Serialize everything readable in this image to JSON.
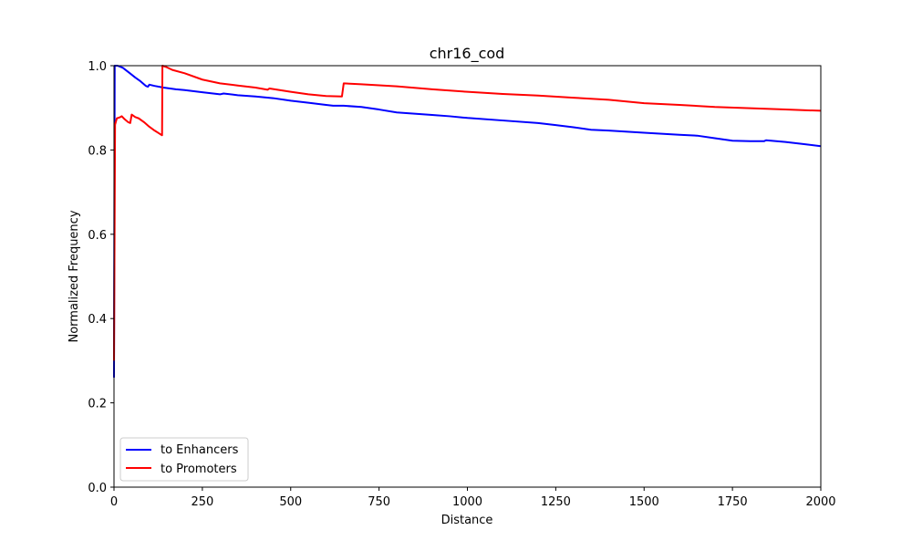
{
  "chart_data": {
    "type": "line",
    "title": "chr16_cod",
    "xlabel": "Distance",
    "ylabel": "Normalized Frequency",
    "xlim": [
      0,
      2000
    ],
    "ylim": [
      0.0,
      1.0
    ],
    "xticks": [
      0,
      250,
      500,
      750,
      1000,
      1250,
      1500,
      1750,
      2000
    ],
    "yticks": [
      0.0,
      0.2,
      0.4,
      0.6,
      0.8,
      1.0
    ],
    "xtick_labels": [
      "0",
      "250",
      "500",
      "750",
      "1000",
      "1250",
      "1500",
      "1750",
      "2000"
    ],
    "ytick_labels": [
      "0.0",
      "0.2",
      "0.4",
      "0.6",
      "0.8",
      "1.0"
    ],
    "grid": false,
    "legend_position": "lower-left",
    "series": [
      {
        "name": "to Enhancers",
        "color": "#0000ff",
        "points": [
          [
            0,
            0.26
          ],
          [
            2,
            1.0
          ],
          [
            10,
            1.0
          ],
          [
            25,
            0.995
          ],
          [
            45,
            0.982
          ],
          [
            60,
            0.972
          ],
          [
            75,
            0.963
          ],
          [
            90,
            0.952
          ],
          [
            96,
            0.95
          ],
          [
            100,
            0.955
          ],
          [
            115,
            0.952
          ],
          [
            140,
            0.948
          ],
          [
            175,
            0.944
          ],
          [
            200,
            0.942
          ],
          [
            250,
            0.937
          ],
          [
            300,
            0.932
          ],
          [
            310,
            0.934
          ],
          [
            350,
            0.93
          ],
          [
            400,
            0.927
          ],
          [
            450,
            0.923
          ],
          [
            500,
            0.917
          ],
          [
            550,
            0.912
          ],
          [
            600,
            0.907
          ],
          [
            620,
            0.905
          ],
          [
            650,
            0.905
          ],
          [
            700,
            0.902
          ],
          [
            750,
            0.896
          ],
          [
            800,
            0.889
          ],
          [
            850,
            0.886
          ],
          [
            900,
            0.883
          ],
          [
            950,
            0.88
          ],
          [
            1000,
            0.876
          ],
          [
            1100,
            0.87
          ],
          [
            1200,
            0.864
          ],
          [
            1250,
            0.859
          ],
          [
            1300,
            0.854
          ],
          [
            1350,
            0.848
          ],
          [
            1400,
            0.846
          ],
          [
            1500,
            0.841
          ],
          [
            1600,
            0.836
          ],
          [
            1650,
            0.834
          ],
          [
            1700,
            0.828
          ],
          [
            1750,
            0.822
          ],
          [
            1800,
            0.821
          ],
          [
            1840,
            0.821
          ],
          [
            1845,
            0.823
          ],
          [
            1900,
            0.819
          ],
          [
            1950,
            0.814
          ],
          [
            2000,
            0.809
          ]
        ]
      },
      {
        "name": "to Promoters",
        "color": "#ff0000",
        "points": [
          [
            0,
            0.3
          ],
          [
            3,
            0.86
          ],
          [
            8,
            0.875
          ],
          [
            15,
            0.877
          ],
          [
            22,
            0.88
          ],
          [
            30,
            0.873
          ],
          [
            40,
            0.866
          ],
          [
            46,
            0.864
          ],
          [
            50,
            0.884
          ],
          [
            60,
            0.878
          ],
          [
            70,
            0.875
          ],
          [
            85,
            0.866
          ],
          [
            100,
            0.855
          ],
          [
            115,
            0.846
          ],
          [
            130,
            0.838
          ],
          [
            136,
            0.835
          ],
          [
            137,
            1.0
          ],
          [
            150,
            0.996
          ],
          [
            165,
            0.99
          ],
          [
            200,
            0.982
          ],
          [
            250,
            0.967
          ],
          [
            300,
            0.958
          ],
          [
            350,
            0.953
          ],
          [
            400,
            0.948
          ],
          [
            435,
            0.943
          ],
          [
            440,
            0.946
          ],
          [
            500,
            0.938
          ],
          [
            550,
            0.932
          ],
          [
            600,
            0.928
          ],
          [
            645,
            0.927
          ],
          [
            650,
            0.958
          ],
          [
            700,
            0.956
          ],
          [
            800,
            0.951
          ],
          [
            900,
            0.944
          ],
          [
            1000,
            0.938
          ],
          [
            1100,
            0.933
          ],
          [
            1200,
            0.929
          ],
          [
            1300,
            0.924
          ],
          [
            1400,
            0.919
          ],
          [
            1500,
            0.911
          ],
          [
            1600,
            0.907
          ],
          [
            1700,
            0.902
          ],
          [
            1800,
            0.899
          ],
          [
            1900,
            0.896
          ],
          [
            2000,
            0.893
          ]
        ]
      }
    ]
  }
}
